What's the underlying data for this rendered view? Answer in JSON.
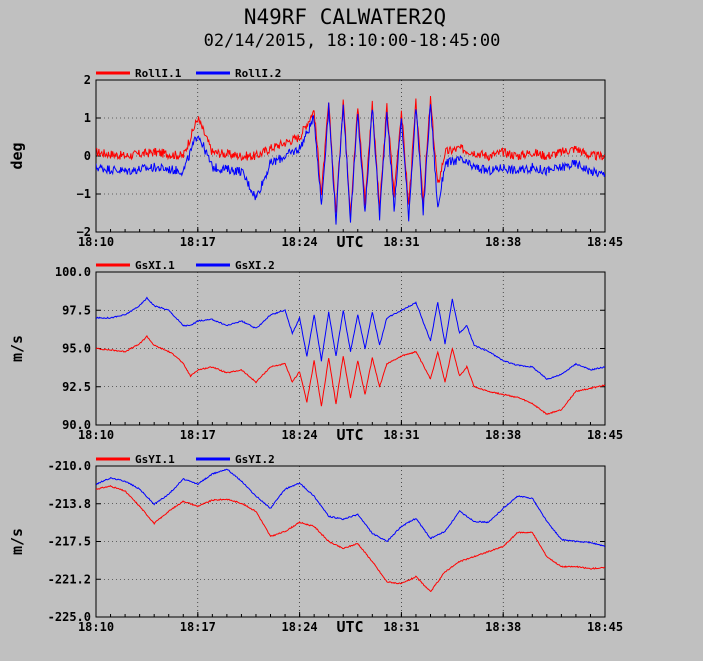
{
  "header": {
    "title": "N49RF CALWATER2Q",
    "subtitle": "02/14/2015, 18:10:00-18:45:00"
  },
  "chart_data": [
    {
      "type": "line",
      "title": "",
      "xlabel": "UTC",
      "ylabel": "deg",
      "x_tick_labels": [
        "18:10",
        "18:17",
        "18:24",
        "18:31",
        "18:38",
        "18:45"
      ],
      "y_tick_labels": [
        "2",
        "1",
        "0",
        "−1",
        "−2"
      ],
      "ylim": [
        -2,
        2
      ],
      "xlim_minutes": [
        0,
        35
      ],
      "grid": true,
      "legend_position": "top-left",
      "series": [
        {
          "name": "RollI.1",
          "color": "#ff0000",
          "x": [
            0,
            2,
            4,
            6,
            7,
            8,
            10,
            11,
            12,
            14,
            15,
            15.5,
            16,
            16.5,
            17,
            17.5,
            18,
            18.5,
            19,
            19.5,
            20,
            20.5,
            21,
            21.5,
            22,
            22.5,
            23,
            23.5,
            24,
            25,
            26,
            27,
            28,
            29,
            30,
            31,
            32,
            33,
            34,
            35
          ],
          "values": [
            0.1,
            0.0,
            0.1,
            0.0,
            1.0,
            0.1,
            0.0,
            0.0,
            0.2,
            0.5,
            1.2,
            -1.0,
            1.4,
            -1.5,
            1.5,
            -1.5,
            1.3,
            -1.2,
            1.4,
            -1.4,
            1.3,
            -1.0,
            1.2,
            -1.3,
            1.4,
            -1.2,
            1.5,
            -0.8,
            0.1,
            0.2,
            0.1,
            0.0,
            0.1,
            0.0,
            0.1,
            0.0,
            0.1,
            0.2,
            0.0,
            0.0
          ]
        },
        {
          "name": "RollI.2",
          "color": "#0000ff",
          "x": [
            0,
            2,
            4,
            6,
            7,
            8,
            10,
            11,
            12,
            14,
            15,
            15.5,
            16,
            16.5,
            17,
            17.5,
            18,
            18.5,
            19,
            19.5,
            20,
            20.5,
            21,
            21.5,
            22,
            22.5,
            23,
            23.5,
            24,
            25,
            26,
            27,
            28,
            29,
            30,
            31,
            32,
            33,
            34,
            35
          ],
          "values": [
            -0.3,
            -0.4,
            -0.3,
            -0.4,
            0.6,
            -0.3,
            -0.4,
            -1.1,
            -0.2,
            0.2,
            1.0,
            -1.3,
            1.3,
            -1.7,
            1.4,
            -1.7,
            1.1,
            -1.5,
            1.3,
            -1.6,
            1.2,
            -1.4,
            1.0,
            -1.6,
            1.3,
            -1.5,
            1.4,
            -1.4,
            -0.2,
            -0.1,
            -0.3,
            -0.4,
            -0.3,
            -0.4,
            -0.3,
            -0.4,
            -0.3,
            -0.2,
            -0.4,
            -0.5
          ]
        }
      ]
    },
    {
      "type": "line",
      "title": "",
      "xlabel": "UTC",
      "ylabel": "m/s",
      "x_tick_labels": [
        "18:10",
        "18:17",
        "18:24",
        "18:31",
        "18:38",
        "18:45"
      ],
      "y_tick_labels": [
        "100.0",
        "97.5",
        "95.0",
        "92.5",
        "90.0"
      ],
      "ylim": [
        90,
        100
      ],
      "xlim_minutes": [
        0,
        35
      ],
      "grid": true,
      "legend_position": "top-left",
      "series": [
        {
          "name": "GsXI.1",
          "color": "#ff0000",
          "x": [
            0,
            1,
            2,
            3,
            3.5,
            4,
            5,
            5.5,
            6,
            6.5,
            7,
            8,
            9,
            10,
            11,
            12,
            13,
            13.5,
            14,
            14.5,
            15,
            15.5,
            16,
            16.5,
            17,
            17.5,
            18,
            18.5,
            19,
            19.5,
            20,
            21,
            22,
            23,
            23.5,
            24,
            24.5,
            25,
            25.5,
            26,
            27,
            28,
            29,
            30,
            31,
            32,
            33,
            34,
            35
          ],
          "values": [
            95.0,
            94.9,
            94.8,
            95.3,
            95.8,
            95.2,
            94.8,
            94.5,
            94.0,
            93.2,
            93.6,
            93.8,
            93.4,
            93.6,
            92.8,
            93.8,
            94.0,
            92.8,
            93.5,
            91.5,
            94.2,
            91.2,
            94.4,
            91.4,
            94.5,
            91.8,
            94.2,
            92.0,
            94.4,
            92.5,
            94.0,
            94.5,
            94.8,
            93.0,
            94.8,
            92.8,
            95.0,
            93.2,
            93.8,
            92.5,
            92.2,
            92.0,
            91.8,
            91.4,
            90.7,
            91.0,
            92.2,
            92.4,
            92.6
          ]
        },
        {
          "name": "GsXI.2",
          "color": "#0000ff",
          "x": [
            0,
            1,
            2,
            3,
            3.5,
            4,
            5,
            5.5,
            6,
            6.5,
            7,
            8,
            9,
            10,
            11,
            12,
            13,
            13.5,
            14,
            14.5,
            15,
            15.5,
            16,
            16.5,
            17,
            17.5,
            18,
            18.5,
            19,
            19.5,
            20,
            21,
            22,
            23,
            23.5,
            24,
            24.5,
            25,
            25.5,
            26,
            27,
            28,
            29,
            30,
            31,
            32,
            33,
            34,
            35
          ],
          "values": [
            97.0,
            97.0,
            97.2,
            97.8,
            98.3,
            97.8,
            97.5,
            97.0,
            96.5,
            96.5,
            96.8,
            96.9,
            96.5,
            96.8,
            96.3,
            97.2,
            97.5,
            96.0,
            97.0,
            94.5,
            97.2,
            94.2,
            97.4,
            94.5,
            97.5,
            94.8,
            97.2,
            95.0,
            97.4,
            95.2,
            97.0,
            97.5,
            98.0,
            95.5,
            98.0,
            95.3,
            98.2,
            96.0,
            96.5,
            95.2,
            94.8,
            94.2,
            93.9,
            93.8,
            93.0,
            93.3,
            94.0,
            93.6,
            93.8
          ]
        }
      ]
    },
    {
      "type": "line",
      "title": "",
      "xlabel": "UTC",
      "ylabel": "m/s",
      "x_tick_labels": [
        "18:10",
        "18:17",
        "18:24",
        "18:31",
        "18:38",
        "18:45"
      ],
      "y_tick_labels": [
        "-210.0",
        "-213.8",
        "-217.5",
        "-221.2",
        "-225.0"
      ],
      "ylim": [
        -225,
        -210
      ],
      "xlim_minutes": [
        0,
        35
      ],
      "grid": true,
      "legend_position": "top-left",
      "series": [
        {
          "name": "GsYI.1",
          "color": "#ff0000",
          "x": [
            0,
            1,
            2,
            3,
            4,
            5,
            6,
            7,
            8,
            9,
            10,
            11,
            12,
            13,
            14,
            15,
            16,
            17,
            18,
            19,
            20,
            21,
            22,
            23,
            24,
            25,
            26,
            27,
            28,
            29,
            30,
            31,
            32,
            33,
            34,
            35
          ],
          "values": [
            -212.3,
            -212.0,
            -212.5,
            -214.0,
            -215.7,
            -214.5,
            -213.5,
            -214.0,
            -213.4,
            -213.3,
            -213.7,
            -214.5,
            -217.0,
            -216.5,
            -215.6,
            -216.0,
            -217.5,
            -218.2,
            -217.7,
            -219.5,
            -221.5,
            -221.7,
            -221.0,
            -222.5,
            -220.5,
            -219.5,
            -219.0,
            -218.5,
            -218.0,
            -216.6,
            -216.6,
            -219.0,
            -220.0,
            -220.0,
            -220.2,
            -220.1
          ]
        },
        {
          "name": "GsYI.2",
          "color": "#0000ff",
          "x": [
            0,
            1,
            2,
            3,
            4,
            5,
            6,
            7,
            8,
            9,
            10,
            11,
            12,
            13,
            14,
            15,
            16,
            17,
            18,
            19,
            20,
            21,
            22,
            23,
            24,
            25,
            26,
            27,
            28,
            29,
            30,
            31,
            32,
            33,
            34,
            35
          ],
          "values": [
            -211.8,
            -211.2,
            -211.5,
            -212.3,
            -213.8,
            -212.8,
            -211.3,
            -211.8,
            -210.8,
            -210.3,
            -211.5,
            -213.0,
            -214.2,
            -212.3,
            -211.7,
            -213.0,
            -215.0,
            -215.3,
            -214.8,
            -216.7,
            -217.5,
            -216.0,
            -215.2,
            -217.2,
            -216.5,
            -214.5,
            -215.5,
            -215.6,
            -214.2,
            -213.0,
            -213.2,
            -215.5,
            -217.3,
            -217.5,
            -217.6,
            -218.0
          ]
        }
      ]
    }
  ]
}
